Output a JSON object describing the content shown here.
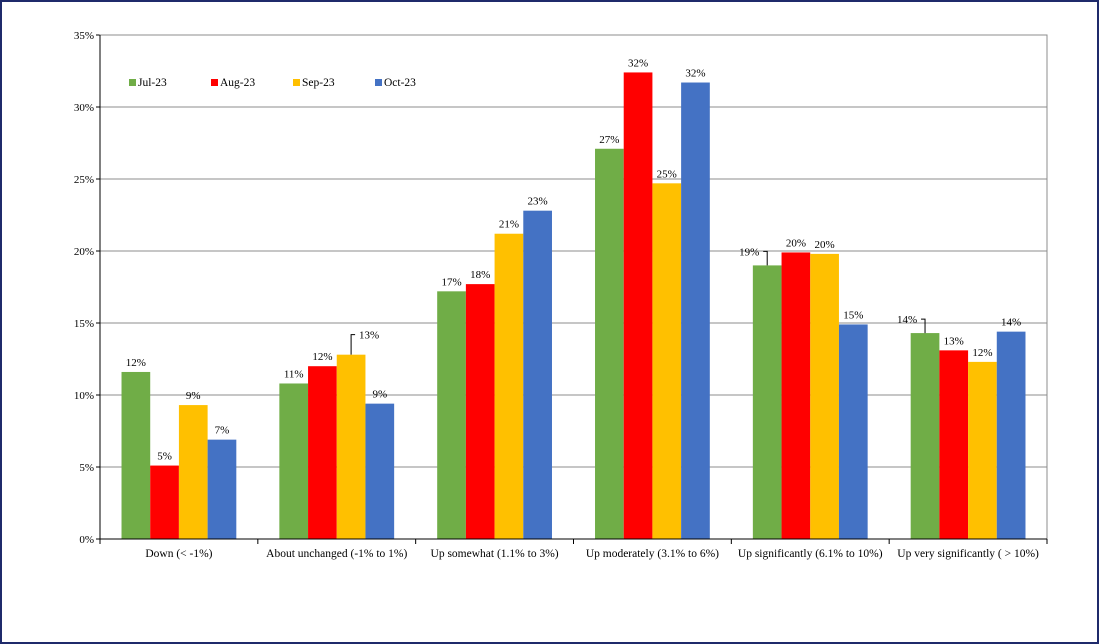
{
  "chart_data": {
    "type": "bar",
    "categories": [
      "Down (< -1%)",
      "About unchanged (-1% to 1%)",
      "Up somewhat (1.1% to 3%)",
      "Up moderately (3.1% to 6%)",
      "Up significantly (6.1% to 10%)",
      "Up very significantly ( > 10%)"
    ],
    "series": [
      {
        "name": "Jul-23",
        "color": "#70ad47",
        "values": [
          11.6,
          10.8,
          17.2,
          27.1,
          19.0,
          14.3
        ],
        "labels": [
          "12%",
          "11%",
          "17%",
          "27%",
          "19%",
          "14%"
        ]
      },
      {
        "name": "Aug-23",
        "color": "#ff0000",
        "values": [
          5.1,
          12.0,
          17.7,
          32.4,
          19.9,
          13.1
        ],
        "labels": [
          "5%",
          "12%",
          "18%",
          "32%",
          "20%",
          "13%"
        ]
      },
      {
        "name": "Sep-23",
        "color": "#ffc000",
        "values": [
          9.3,
          12.8,
          21.2,
          24.7,
          19.8,
          12.3
        ],
        "labels": [
          "9%",
          "13%",
          "21%",
          "25%",
          "20%",
          "12%"
        ]
      },
      {
        "name": "Oct-23",
        "color": "#4472c4",
        "values": [
          6.9,
          9.4,
          22.8,
          31.7,
          14.9,
          14.4
        ],
        "labels": [
          "7%",
          "9%",
          "23%",
          "32%",
          "15%",
          "14%"
        ]
      }
    ],
    "y_ticks": [
      0,
      5,
      10,
      15,
      20,
      25,
      30,
      35
    ],
    "y_tick_labels": [
      "0%",
      "5%",
      "10%",
      "15%",
      "20%",
      "25%",
      "30%",
      "35%"
    ],
    "ylim": [
      0,
      35
    ],
    "title": "",
    "xlabel": "",
    "ylabel": "",
    "grid": true,
    "legend_position": "top-left"
  }
}
